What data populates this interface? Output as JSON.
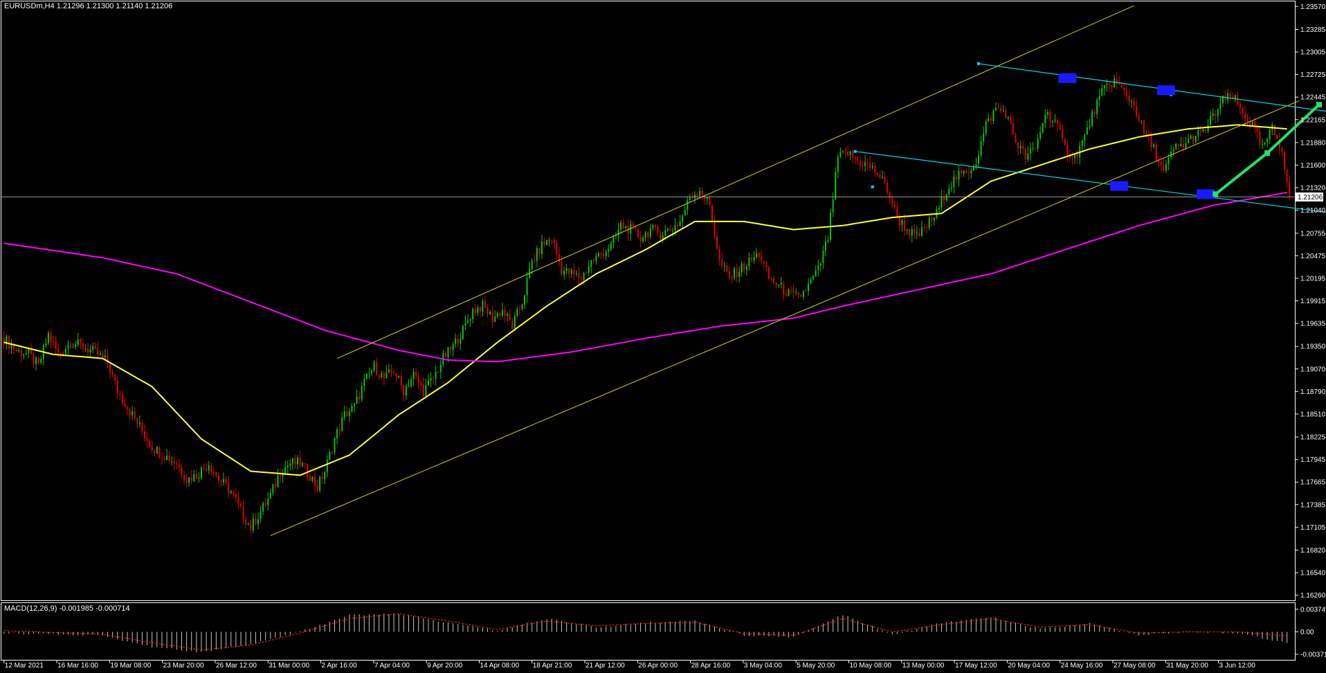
{
  "header": {
    "symbol": "EURUSDm,H4",
    "ohlc": "1.21296 1.21300 1.21140 1.21206"
  },
  "macd_header": {
    "label": "MACD(12,26,9) -0.001985 -0.000714"
  },
  "current_price_label": "1.21206",
  "colors": {
    "background": "#000000",
    "bull_candle": "#00c800",
    "bear_candle": "#e00000",
    "ma_fast": "#ffff33",
    "ma_slow": "#ff00ff",
    "channel": "#d4d400",
    "descending_channel": "#00d8e8",
    "projection_arrow": "#22e36a",
    "marker_box": "#1a1aff",
    "macd_hist": "#c8c8c8",
    "macd_signal": "#ff2020"
  },
  "chart_data": [
    {
      "type": "candlestick",
      "symbol": "EURUSDm",
      "timeframe": "H4",
      "ylim": [
        1.1624,
        1.2359
      ],
      "y_ticks": [
        "1.23570",
        "1.23285",
        "1.23005",
        "1.22725",
        "1.22445",
        "1.22165",
        "1.21880",
        "1.21600",
        "1.21320",
        "1.21040",
        "1.20755",
        "1.20475",
        "1.20195",
        "1.19915",
        "1.19635",
        "1.19350",
        "1.19070",
        "1.18790",
        "1.18510",
        "1.18225",
        "1.17945",
        "1.17665",
        "1.17385",
        "1.17105",
        "1.16820",
        "1.16540",
        "1.16260"
      ],
      "x_ticks": [
        "12 Mar 2021",
        "16 Mar 16:00",
        "19 Mar 08:00",
        "23 Mar 20:00",
        "26 Mar 12:00",
        "31 Mar 00:00",
        "2 Apr 16:00",
        "7 Apr 04:00",
        "9 Apr 20:00",
        "14 Apr 08:00",
        "18 Apr 21:00",
        "21 Apr 12:00",
        "26 Apr 00:00",
        "28 Apr 16:00",
        "3 May 04:00",
        "5 May 20:00",
        "10 May 08:00",
        "13 May 00:00",
        "17 May 12:00",
        "20 May 04:00",
        "24 May 16:00",
        "27 May 08:00",
        "31 May 20:00",
        "3 Jun 12:00"
      ],
      "current_price": 1.21206,
      "close_path": [
        [
          0,
          1.1945
        ],
        [
          5,
          1.193
        ],
        [
          10,
          1.1925
        ],
        [
          14,
          1.191
        ],
        [
          18,
          1.195
        ],
        [
          22,
          1.1925
        ],
        [
          27,
          1.194
        ],
        [
          32,
          1.1935
        ],
        [
          38,
          1.1925
        ],
        [
          42,
          1.1915
        ],
        [
          46,
          1.188
        ],
        [
          50,
          1.186
        ],
        [
          55,
          1.1835
        ],
        [
          60,
          1.181
        ],
        [
          65,
          1.18
        ],
        [
          70,
          1.179
        ],
        [
          74,
          1.177
        ],
        [
          78,
          1.1775
        ],
        [
          83,
          1.179
        ],
        [
          87,
          1.177
        ],
        [
          92,
          1.1755
        ],
        [
          96,
          1.173
        ],
        [
          100,
          1.171
        ],
        [
          104,
          1.173
        ],
        [
          108,
          1.175
        ],
        [
          112,
          1.178
        ],
        [
          116,
          1.179
        ],
        [
          120,
          1.179
        ],
        [
          124,
          1.1775
        ],
        [
          127,
          1.176
        ],
        [
          130,
          1.178
        ],
        [
          134,
          1.182
        ],
        [
          138,
          1.185
        ],
        [
          142,
          1.186
        ],
        [
          146,
          1.189
        ],
        [
          150,
          1.191
        ],
        [
          154,
          1.1895
        ],
        [
          158,
          1.1905
        ],
        [
          162,
          1.188
        ],
        [
          166,
          1.19
        ],
        [
          170,
          1.188
        ],
        [
          174,
          1.1895
        ],
        [
          178,
          1.192
        ],
        [
          182,
          1.1935
        ],
        [
          186,
          1.1955
        ],
        [
          190,
          1.198
        ],
        [
          194,
          1.1985
        ],
        [
          198,
          1.197
        ],
        [
          202,
          1.198
        ],
        [
          206,
          1.196
        ],
        [
          210,
          1.199
        ],
        [
          214,
          1.204
        ],
        [
          218,
          1.206
        ],
        [
          222,
          1.207
        ],
        [
          226,
          1.203
        ],
        [
          230,
          1.2025
        ],
        [
          234,
          1.202
        ],
        [
          238,
          1.204
        ],
        [
          242,
          1.205
        ],
        [
          246,
          1.206
        ],
        [
          250,
          1.2085
        ],
        [
          254,
          1.208
        ],
        [
          258,
          1.207
        ],
        [
          262,
          1.208
        ],
        [
          266,
          1.2075
        ],
        [
          270,
          1.208
        ],
        [
          274,
          1.209
        ],
        [
          278,
          1.212
        ],
        [
          282,
          1.213
        ],
        [
          286,
          1.211
        ],
        [
          290,
          1.204
        ],
        [
          294,
          1.202
        ],
        [
          298,
          1.203
        ],
        [
          302,
          1.204
        ],
        [
          306,
          1.205
        ],
        [
          310,
          1.202
        ],
        [
          314,
          1.201
        ],
        [
          318,
          1.2
        ],
        [
          322,
          1.1995
        ],
        [
          326,
          1.201
        ],
        [
          330,
          1.203
        ],
        [
          334,
          1.207
        ],
        [
          338,
          1.217
        ],
        [
          342,
          1.2175
        ],
        [
          346,
          1.2165
        ],
        [
          350,
          1.216
        ],
        [
          354,
          1.215
        ],
        [
          358,
          1.213
        ],
        [
          362,
          1.2095
        ],
        [
          366,
          1.208
        ],
        [
          370,
          1.207
        ],
        [
          374,
          1.2085
        ],
        [
          378,
          1.21
        ],
        [
          382,
          1.213
        ],
        [
          386,
          1.2145
        ],
        [
          390,
          1.215
        ],
        [
          394,
          1.2165
        ],
        [
          398,
          1.221
        ],
        [
          402,
          1.223
        ],
        [
          406,
          1.2225
        ],
        [
          410,
          1.219
        ],
        [
          414,
          1.217
        ],
        [
          418,
          1.218
        ],
        [
          422,
          1.2225
        ],
        [
          426,
          1.2215
        ],
        [
          430,
          1.218
        ],
        [
          434,
          1.217
        ],
        [
          438,
          1.2195
        ],
        [
          442,
          1.223
        ],
        [
          446,
          1.2255
        ],
        [
          450,
          1.2265
        ],
        [
          454,
          1.225
        ],
        [
          458,
          1.2235
        ],
        [
          462,
          1.22
        ],
        [
          466,
          1.218
        ],
        [
          470,
          1.215
        ],
        [
          474,
          1.218
        ],
        [
          478,
          1.2185
        ],
        [
          482,
          1.2195
        ],
        [
          486,
          1.22
        ],
        [
          490,
          1.222
        ],
        [
          494,
          1.224
        ],
        [
          498,
          1.2245
        ],
        [
          502,
          1.2225
        ],
        [
          506,
          1.221
        ],
        [
          510,
          1.218
        ],
        [
          514,
          1.2205
        ],
        [
          518,
          1.218
        ],
        [
          521,
          1.2121
        ]
      ],
      "series": [
        {
          "name": "",
          "role": "fast_ma",
          "points": [
            [
              0,
              1.194
            ],
            [
              20,
              1.1925
            ],
            [
              40,
              1.192
            ],
            [
              60,
              1.1885
            ],
            [
              80,
              1.182
            ],
            [
              100,
              1.178
            ],
            [
              120,
              1.1775
            ],
            [
              140,
              1.18
            ],
            [
              160,
              1.185
            ],
            [
              180,
              1.189
            ],
            [
              200,
              1.194
            ],
            [
              220,
              1.1985
            ],
            [
              240,
              1.2025
            ],
            [
              260,
              1.2055
            ],
            [
              280,
              1.209
            ],
            [
              300,
              1.209
            ],
            [
              320,
              1.208
            ],
            [
              340,
              1.2085
            ],
            [
              360,
              1.2095
            ],
            [
              380,
              1.21
            ],
            [
              400,
              1.214
            ],
            [
              420,
              1.216
            ],
            [
              440,
              1.218
            ],
            [
              460,
              1.2195
            ],
            [
              480,
              1.2205
            ],
            [
              500,
              1.221
            ],
            [
              520,
              1.2205
            ]
          ]
        },
        {
          "name": "",
          "role": "slow_ma",
          "points": [
            [
              0,
              1.2063
            ],
            [
              40,
              1.2045
            ],
            [
              70,
              1.2025
            ],
            [
              100,
              1.199
            ],
            [
              130,
              1.1955
            ],
            [
              160,
              1.193
            ],
            [
              180,
              1.1918
            ],
            [
              200,
              1.1916
            ],
            [
              230,
              1.1928
            ],
            [
              260,
              1.1945
            ],
            [
              290,
              1.196
            ],
            [
              320,
              1.197
            ],
            [
              340,
              1.1985
            ],
            [
              370,
              1.2005
            ],
            [
              400,
              1.2025
            ],
            [
              430,
              1.2055
            ],
            [
              460,
              1.2085
            ],
            [
              490,
              1.211
            ],
            [
              520,
              1.2126
            ]
          ]
        }
      ],
      "annotations": {
        "ascending_channel": {
          "upper": [
            [
              135,
              1.192
            ],
            [
              458,
              1.2358
            ]
          ],
          "lower": [
            [
              108,
              1.17
            ],
            [
              525,
              1.224
            ]
          ]
        },
        "descending_channel": {
          "upper": [
            [
              395,
              1.2286
            ],
            [
              588,
              1.2205
            ]
          ],
          "lower": [
            [
              345,
              1.2177
            ],
            [
              570,
              1.2088
            ]
          ]
        },
        "projection_arrow": [
          [
            491,
            1.2124
          ],
          [
            512,
            1.2175
          ],
          [
            533,
            1.2235
          ]
        ],
        "marker_boxes": [
          [
            431,
            1.2268
          ],
          [
            471,
            1.2253
          ],
          [
            452,
            1.2134
          ],
          [
            487,
            1.2124
          ]
        ]
      }
    },
    {
      "type": "bar",
      "title": "MACD(12,26,9)",
      "ylim": [
        -0.0043,
        0.0042
      ],
      "y_ticks": [
        "0.003749",
        "0.00",
        "-0.003719"
      ],
      "hist_path": [
        [
          0,
          -0.0002
        ],
        [
          40,
          -0.0006
        ],
        [
          60,
          -0.0025
        ],
        [
          80,
          -0.0034
        ],
        [
          100,
          -0.002
        ],
        [
          120,
          0.0
        ],
        [
          140,
          0.0028
        ],
        [
          160,
          0.003
        ],
        [
          180,
          0.0015
        ],
        [
          200,
          0.0002
        ],
        [
          220,
          0.0022
        ],
        [
          240,
          0.0008
        ],
        [
          260,
          0.0015
        ],
        [
          280,
          0.0018
        ],
        [
          300,
          -0.0006
        ],
        [
          320,
          -0.0008
        ],
        [
          340,
          0.0028
        ],
        [
          360,
          -0.0004
        ],
        [
          380,
          0.0015
        ],
        [
          400,
          0.0025
        ],
        [
          420,
          0.0005
        ],
        [
          440,
          0.0015
        ],
        [
          460,
          -0.0005
        ],
        [
          480,
          0.0
        ],
        [
          500,
          -0.0002
        ],
        [
          521,
          -0.002
        ]
      ],
      "signal_path": [
        [
          0,
          0.0002
        ],
        [
          40,
          -0.0004
        ],
        [
          60,
          -0.0018
        ],
        [
          80,
          -0.003
        ],
        [
          100,
          -0.0022
        ],
        [
          120,
          -0.0002
        ],
        [
          140,
          0.0022
        ],
        [
          160,
          0.003
        ],
        [
          180,
          0.0018
        ],
        [
          200,
          0.0004
        ],
        [
          220,
          0.0018
        ],
        [
          240,
          0.001
        ],
        [
          260,
          0.0014
        ],
        [
          280,
          0.0016
        ],
        [
          300,
          -0.0003
        ],
        [
          320,
          -0.0006
        ],
        [
          340,
          0.0022
        ],
        [
          360,
          0.0
        ],
        [
          380,
          0.0012
        ],
        [
          400,
          0.0022
        ],
        [
          420,
          0.0008
        ],
        [
          440,
          0.0012
        ],
        [
          460,
          -0.0002
        ],
        [
          480,
          0.0
        ],
        [
          500,
          0.0
        ],
        [
          521,
          -0.0007
        ]
      ]
    }
  ]
}
